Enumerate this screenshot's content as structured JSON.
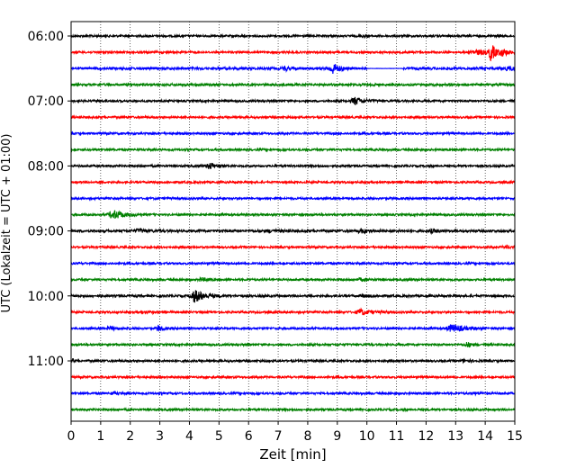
{
  "chart_data": {
    "type": "line",
    "subtype": "helicorder",
    "xlabel": "Zeit  [min]",
    "ylabel": "UTC (Lokalzeit = UTC + 01:00)",
    "xlim": [
      0,
      15
    ],
    "x_ticks": [
      "0",
      "1",
      "2",
      "3",
      "4",
      "5",
      "6",
      "7",
      "8",
      "9",
      "10",
      "11",
      "12",
      "13",
      "14",
      "15"
    ],
    "vertical_grid": "dotted",
    "row_interval_minutes": 15,
    "row_color_cycle": [
      "#000000",
      "#ff0000",
      "#0000ff",
      "#008000"
    ],
    "y_tick_labels": [
      {
        "row": 0,
        "label": "06:00"
      },
      {
        "row": 4,
        "label": "07:00"
      },
      {
        "row": 8,
        "label": "08:00"
      },
      {
        "row": 12,
        "label": "09:00"
      },
      {
        "row": 16,
        "label": "10:00"
      },
      {
        "row": 20,
        "label": "11:00"
      }
    ],
    "rows": [
      {
        "start": "06:00",
        "color": "#000000",
        "noise": 1.0,
        "events": [
          {
            "t": 9.9,
            "amp": 1.0,
            "dur": 0.3
          },
          {
            "t": 14.5,
            "amp": 0.6,
            "dur": 0.2
          }
        ]
      },
      {
        "start": "06:15",
        "color": "#ff0000",
        "noise": 1.0,
        "events": [
          {
            "t": 14.2,
            "amp": 9.0,
            "dur": 0.2
          },
          {
            "t": 13.7,
            "amp": 2.5,
            "dur": 0.5
          },
          {
            "t": 14.6,
            "amp": 3.0,
            "dur": 0.3
          }
        ]
      },
      {
        "start": "06:30",
        "color": "#0000ff",
        "noise": 1.2,
        "events": [
          {
            "t": 7.2,
            "amp": 3.0,
            "dur": 0.15
          },
          {
            "t": 8.85,
            "amp": 6.0,
            "dur": 0.25
          },
          {
            "t": 14.8,
            "amp": 2.0,
            "dur": 0.3
          }
        ],
        "flat": [
          10.0,
          11.2
        ]
      },
      {
        "start": "06:45",
        "color": "#008000",
        "noise": 1.1,
        "events": []
      },
      {
        "start": "07:00",
        "color": "#000000",
        "noise": 1.0,
        "events": [
          {
            "t": 9.6,
            "amp": 4.0,
            "dur": 0.35
          }
        ]
      },
      {
        "start": "07:15",
        "color": "#ff0000",
        "noise": 1.0,
        "events": []
      },
      {
        "start": "07:30",
        "color": "#0000ff",
        "noise": 1.0,
        "events": []
      },
      {
        "start": "07:45",
        "color": "#008000",
        "noise": 1.0,
        "events": []
      },
      {
        "start": "08:00",
        "color": "#000000",
        "noise": 1.0,
        "events": [
          {
            "t": 4.7,
            "amp": 3.5,
            "dur": 0.25
          }
        ]
      },
      {
        "start": "08:15",
        "color": "#ff0000",
        "noise": 1.0,
        "events": []
      },
      {
        "start": "08:30",
        "color": "#0000ff",
        "noise": 1.0,
        "events": []
      },
      {
        "start": "08:45",
        "color": "#008000",
        "noise": 1.0,
        "events": [
          {
            "t": 1.45,
            "amp": 4.5,
            "dur": 0.45
          }
        ]
      },
      {
        "start": "09:00",
        "color": "#000000",
        "noise": 1.2,
        "events": [
          {
            "t": 2.3,
            "amp": 1.5,
            "dur": 0.4
          },
          {
            "t": 6.7,
            "amp": 1.2,
            "dur": 0.3
          },
          {
            "t": 9.8,
            "amp": 2.0,
            "dur": 0.3
          },
          {
            "t": 12.2,
            "amp": 1.5,
            "dur": 0.3
          }
        ]
      },
      {
        "start": "09:15",
        "color": "#ff0000",
        "noise": 1.0,
        "events": [
          {
            "t": 14.7,
            "amp": 1.5,
            "dur": 0.25
          }
        ]
      },
      {
        "start": "09:30",
        "color": "#0000ff",
        "noise": 1.0,
        "events": []
      },
      {
        "start": "09:45",
        "color": "#008000",
        "noise": 1.0,
        "events": [
          {
            "t": 4.4,
            "amp": 1.5,
            "dur": 0.3
          },
          {
            "t": 9.8,
            "amp": 1.5,
            "dur": 0.3
          }
        ]
      },
      {
        "start": "10:00",
        "color": "#000000",
        "noise": 1.1,
        "events": [
          {
            "t": 4.2,
            "amp": 6.5,
            "dur": 0.4
          },
          {
            "t": 9.9,
            "amp": 1.0,
            "dur": 0.3
          }
        ]
      },
      {
        "start": "10:15",
        "color": "#ff0000",
        "noise": 1.0,
        "events": [
          {
            "t": 9.8,
            "amp": 3.0,
            "dur": 0.4
          },
          {
            "t": 2.4,
            "amp": 1.2,
            "dur": 0.3
          }
        ]
      },
      {
        "start": "10:30",
        "color": "#0000ff",
        "noise": 1.0,
        "events": [
          {
            "t": 2.95,
            "amp": 3.5,
            "dur": 0.15
          },
          {
            "t": 12.9,
            "amp": 4.0,
            "dur": 0.5
          },
          {
            "t": 1.3,
            "amp": 1.5,
            "dur": 0.3
          }
        ]
      },
      {
        "start": "10:45",
        "color": "#008000",
        "noise": 1.0,
        "events": [
          {
            "t": 13.4,
            "amp": 2.5,
            "dur": 0.2
          }
        ]
      },
      {
        "start": "11:00",
        "color": "#000000",
        "noise": 1.0,
        "events": [
          {
            "t": 0.05,
            "amp": 2.0,
            "dur": 0.1
          },
          {
            "t": 13.3,
            "amp": 1.2,
            "dur": 0.3
          }
        ]
      },
      {
        "start": "11:15",
        "color": "#ff0000",
        "noise": 1.0,
        "events": []
      },
      {
        "start": "11:30",
        "color": "#0000ff",
        "noise": 1.0,
        "events": [
          {
            "t": 1.4,
            "amp": 1.2,
            "dur": 0.2
          },
          {
            "t": 13.7,
            "amp": 1.0,
            "dur": 0.4
          }
        ]
      },
      {
        "start": "11:45",
        "color": "#008000",
        "noise": 1.0,
        "events": []
      }
    ]
  }
}
